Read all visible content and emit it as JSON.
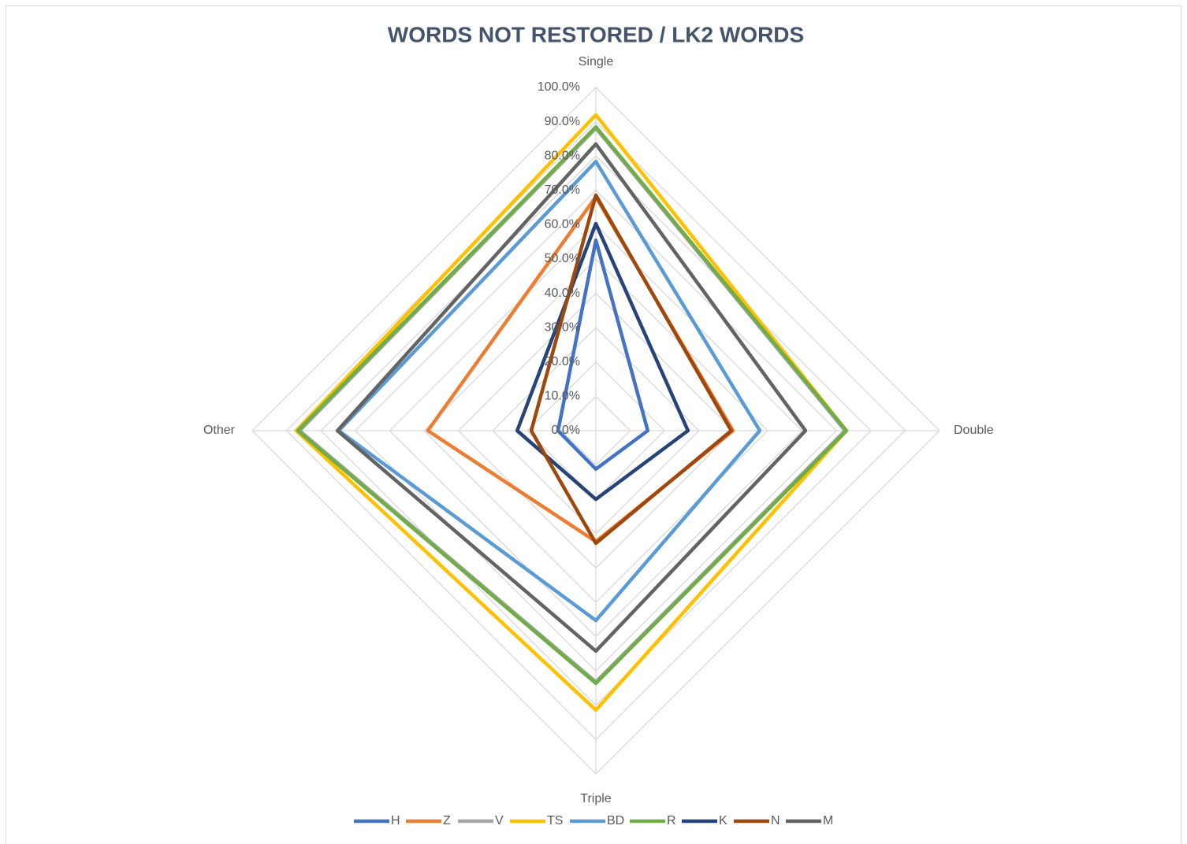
{
  "chart_data": {
    "type": "radar",
    "title": "WORDS NOT RESTORED / LK2 WORDS",
    "categories": [
      "Single",
      "Double",
      "Triple",
      "Other"
    ],
    "series": [
      {
        "name": "H",
        "color": "#4472c4",
        "values": [
          55.5,
          15.1,
          11.2,
          11.0
        ]
      },
      {
        "name": "Z",
        "color": "#ed7d31",
        "values": [
          68.1,
          39.9,
          32.3,
          48.9
        ]
      },
      {
        "name": "V",
        "color": "#a5a5a5",
        "values": [
          88.1,
          72.5,
          73.2,
          86.2
        ]
      },
      {
        "name": "TS",
        "color": "#ffc000",
        "values": [
          92.0,
          72.9,
          81.4,
          87.2
        ]
      },
      {
        "name": "BD",
        "color": "#5b9bd5",
        "values": [
          78.4,
          47.7,
          55.3,
          74.8
        ]
      },
      {
        "name": "R",
        "color": "#70ad47",
        "values": [
          88.5,
          72.9,
          73.6,
          86.7
        ]
      },
      {
        "name": "K",
        "color": "#264478",
        "values": [
          60.3,
          26.8,
          20.0,
          22.9
        ]
      },
      {
        "name": "N",
        "color": "#9e480e",
        "values": [
          68.6,
          39.4,
          32.8,
          18.8
        ]
      },
      {
        "name": "M",
        "color": "#636363",
        "values": [
          83.5,
          61.0,
          64.2,
          75.2
        ]
      }
    ],
    "ylim": [
      0,
      100
    ],
    "yticks": [
      {
        "value": 0,
        "label": "0.0%"
      },
      {
        "value": 10,
        "label": "10.0%"
      },
      {
        "value": 20,
        "label": "20.0%"
      },
      {
        "value": 30,
        "label": "30.0%"
      },
      {
        "value": 40,
        "label": "40.0%"
      },
      {
        "value": 50,
        "label": "50.0%"
      },
      {
        "value": 60,
        "label": "60.0%"
      },
      {
        "value": 70,
        "label": "70.0%"
      },
      {
        "value": 80,
        "label": "80.0%"
      },
      {
        "value": 90,
        "label": "90.0%"
      },
      {
        "value": 100,
        "label": "100.0%"
      }
    ],
    "grid": true,
    "legend": "bottom"
  }
}
